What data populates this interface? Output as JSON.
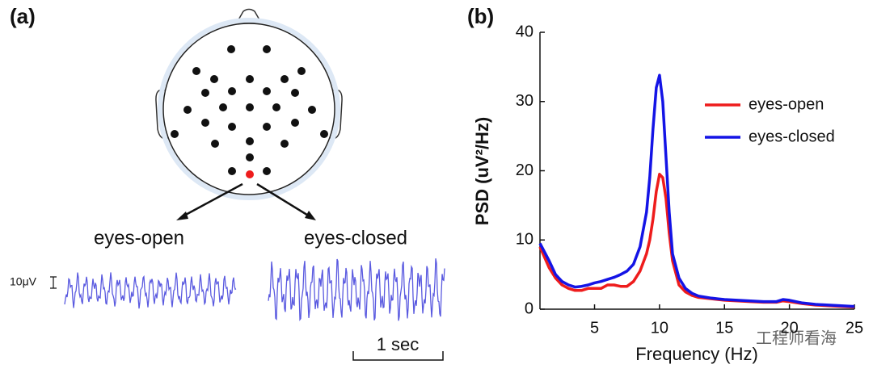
{
  "panel_a": {
    "label": "(a)",
    "left_trace_label": "eyes-open",
    "right_trace_label": "eyes-closed",
    "amplitude_scale": "10μV",
    "time_scale": "1 sec"
  },
  "chart_data": {
    "type": "line",
    "panel_label": "(b)",
    "xlabel": "Frequency (Hz)",
    "ylabel": "PSD (uV²/Hz)",
    "x": [
      0.8,
      1.5,
      2,
      2.5,
      3,
      3.5,
      4,
      4.5,
      5,
      5.5,
      6,
      6.5,
      7,
      7.5,
      8,
      8.5,
      9,
      9.25,
      9.5,
      9.75,
      10,
      10.25,
      10.5,
      10.75,
      11,
      11.5,
      12,
      12.5,
      13,
      14,
      15,
      16,
      17,
      18,
      19,
      19.5,
      20,
      21,
      22,
      23,
      24,
      25
    ],
    "series": [
      {
        "name": "eyes-open",
        "color": "#ee1c1c",
        "values": [
          9,
          6,
          4.5,
          3.5,
          3,
          2.7,
          2.7,
          3,
          3,
          3,
          3.5,
          3.5,
          3.3,
          3.3,
          4,
          5.5,
          8,
          10,
          13,
          17,
          19.5,
          19,
          16,
          11,
          7,
          3.5,
          2.5,
          2,
          1.7,
          1.5,
          1.3,
          1.2,
          1.1,
          1,
          1,
          1.2,
          1.1,
          0.8,
          0.6,
          0.5,
          0.4,
          0.3
        ]
      },
      {
        "name": "eyes-closed",
        "color": "#1414e6",
        "values": [
          9.5,
          7,
          5,
          4,
          3.5,
          3.2,
          3.3,
          3.5,
          3.8,
          4,
          4.3,
          4.6,
          5,
          5.5,
          6.5,
          9,
          14,
          19,
          26,
          32,
          33.8,
          30,
          22,
          14,
          8,
          4.5,
          3,
          2.3,
          1.9,
          1.6,
          1.4,
          1.3,
          1.2,
          1.1,
          1.1,
          1.4,
          1.3,
          0.9,
          0.7,
          0.6,
          0.5,
          0.4
        ]
      }
    ],
    "xlim": [
      0.8,
      25
    ],
    "xticks": [
      5,
      10,
      15,
      20,
      25
    ],
    "ylim": [
      0,
      40
    ],
    "yticks": [
      0,
      10,
      20,
      30,
      40
    ],
    "grid": false,
    "legend": "upper right"
  },
  "watermark": "工程师看海"
}
